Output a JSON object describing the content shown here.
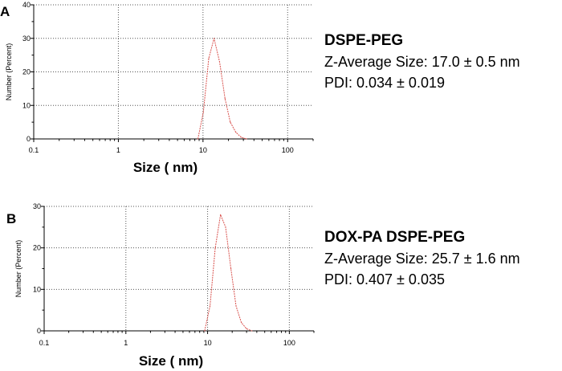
{
  "chart_data": [
    {
      "type": "line",
      "panel_label": "A",
      "xlabel": "Size ( nm)",
      "ylabel": "Number (Percent)",
      "x_scale": "log",
      "xlim": [
        0.1,
        200
      ],
      "ylim": [
        0,
        40
      ],
      "x_ticks": [
        0.1,
        1,
        10,
        100
      ],
      "x_tick_labels": [
        "0.1",
        "1",
        "10",
        "100"
      ],
      "y_ticks": [
        0,
        10,
        20,
        30,
        40
      ],
      "y_tick_labels": [
        "0",
        "10",
        "20",
        "30",
        "40"
      ],
      "grid": true,
      "series": [
        {
          "color": "#d9534f",
          "x": [
            8.7,
            10.1,
            11.7,
            13.5,
            15.7,
            18.2,
            21.0,
            24.4,
            28.2,
            32.7
          ],
          "y": [
            0,
            8,
            24,
            30,
            23,
            12,
            5,
            2,
            0.5,
            0
          ]
        }
      ],
      "annotation": {
        "name": "DSPE-PEG",
        "z_average": "Z-Average Size: 17.0 ± 0.5 nm",
        "pdi": "PDI: 0.034 ± 0.019"
      }
    },
    {
      "type": "line",
      "panel_label": "B",
      "xlabel": "Size ( nm)",
      "ylabel": "Number (Percent)",
      "x_scale": "log",
      "xlim": [
        0.1,
        200
      ],
      "ylim": [
        0,
        30
      ],
      "x_ticks": [
        0.1,
        1,
        10,
        100
      ],
      "x_tick_labels": [
        "0.1",
        "1",
        "10",
        "100"
      ],
      "y_ticks": [
        0,
        10,
        20,
        30
      ],
      "y_tick_labels": [
        "0",
        "10",
        "20",
        "30"
      ],
      "grid": true,
      "series": [
        {
          "color": "#d9534f",
          "x": [
            9.2,
            10.7,
            12.4,
            14.4,
            16.6,
            19.3,
            22.3,
            25.9,
            30.0,
            34.8
          ],
          "y": [
            0,
            6,
            20,
            28,
            25,
            15,
            6,
            2,
            0.5,
            0
          ]
        }
      ],
      "annotation": {
        "name": "DOX-PA DSPE-PEG",
        "z_average": "Z-Average Size: 25.7 ± 1.6 nm",
        "pdi": "PDI: 0.407 ± 0.035"
      }
    }
  ]
}
